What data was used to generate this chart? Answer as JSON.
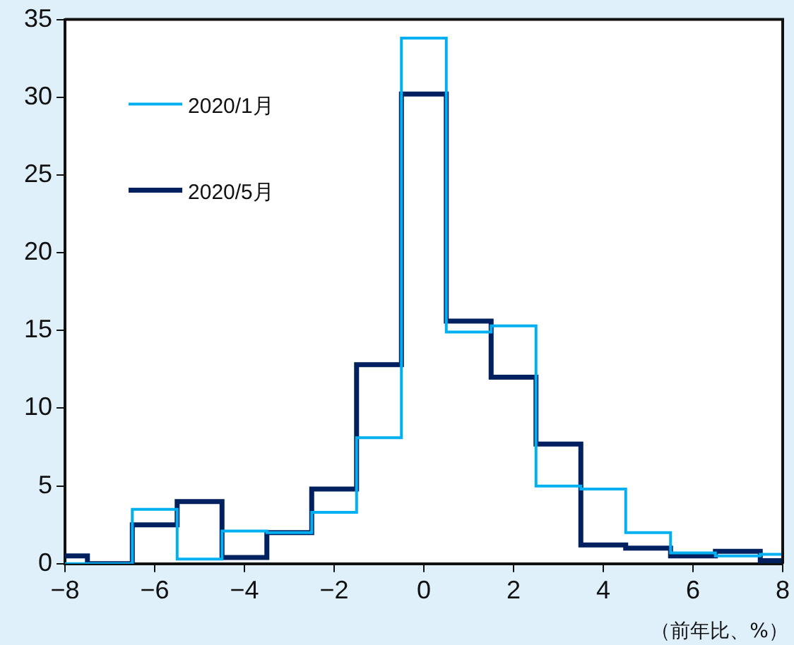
{
  "chart_data": {
    "type": "histogram",
    "xlabel": "（前年比、%）",
    "bins": [
      -8,
      -7.5,
      -6.5,
      -5.5,
      -4.5,
      -3.5,
      -2.5,
      -1.5,
      -0.5,
      0.5,
      1.5,
      2.5,
      3.5,
      4.5,
      5.5,
      6.5,
      7.5,
      8
    ],
    "series": [
      {
        "name": "2020/1月",
        "color": "#00b0f0",
        "values": [
          0,
          0,
          3.5,
          0.3,
          2.1,
          2.0,
          3.3,
          8.1,
          33.8,
          14.9,
          15.3,
          5.0,
          4.8,
          2.0,
          0.7,
          0.5,
          0.6
        ]
      },
      {
        "name": "2020/5月",
        "color": "#002060",
        "values": [
          0.5,
          0,
          2.5,
          4.0,
          0.4,
          2.0,
          4.8,
          12.8,
          30.2,
          15.6,
          12.0,
          7.7,
          1.2,
          1.0,
          0.5,
          0.8,
          0.2
        ]
      }
    ],
    "xlim": [
      -8,
      8
    ],
    "xticks": [
      -8,
      -6,
      -4,
      -2,
      0,
      2,
      4,
      6,
      8
    ],
    "ylim": [
      0,
      35
    ],
    "yticks": [
      0,
      5,
      10,
      15,
      20,
      25,
      30,
      35
    ],
    "grid": false,
    "legend": "top left"
  }
}
